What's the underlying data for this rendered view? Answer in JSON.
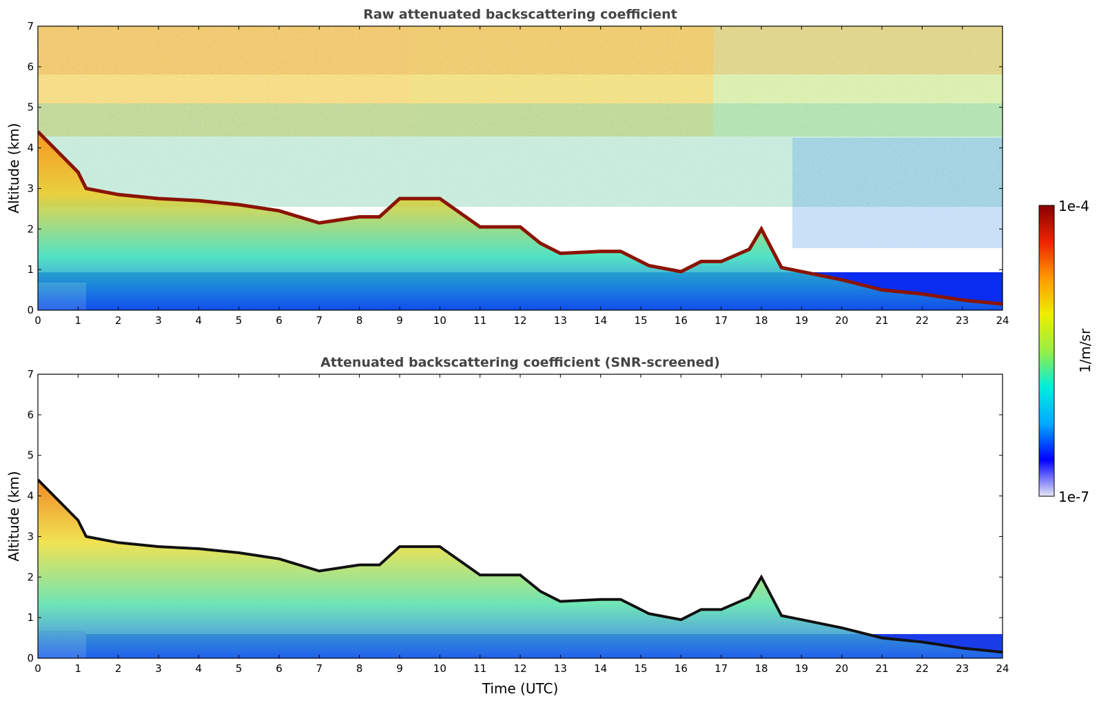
{
  "chart_data": [
    {
      "type": "heatmap",
      "title": "Raw attenuated backscattering coefficient",
      "xlabel": "",
      "ylabel": "Altitude (km)",
      "xlim": [
        0,
        24
      ],
      "ylim": [
        0,
        7
      ],
      "xticks": [
        "0",
        "1",
        "2",
        "3",
        "4",
        "5",
        "6",
        "7",
        "8",
        "9",
        "10",
        "11",
        "12",
        "13",
        "14",
        "15",
        "16",
        "17",
        "18",
        "19",
        "20",
        "21",
        "22",
        "23",
        "24"
      ],
      "yticks": [
        "0",
        "1",
        "2",
        "3",
        "4",
        "5",
        "6",
        "7"
      ],
      "cloud_base_km": [
        {
          "x": 0.0,
          "y": 4.4
        },
        {
          "x": 1.0,
          "y": 3.4
        },
        {
          "x": 1.2,
          "y": 3.0
        },
        {
          "x": 2.0,
          "y": 2.85
        },
        {
          "x": 3.0,
          "y": 2.75
        },
        {
          "x": 4.0,
          "y": 2.7
        },
        {
          "x": 5.0,
          "y": 2.6
        },
        {
          "x": 6.0,
          "y": 2.45
        },
        {
          "x": 7.0,
          "y": 2.15
        },
        {
          "x": 8.0,
          "y": 2.3
        },
        {
          "x": 8.5,
          "y": 2.3
        },
        {
          "x": 9.0,
          "y": 2.75
        },
        {
          "x": 10.0,
          "y": 2.75
        },
        {
          "x": 11.0,
          "y": 2.05
        },
        {
          "x": 12.0,
          "y": 2.05
        },
        {
          "x": 12.5,
          "y": 1.65
        },
        {
          "x": 13.0,
          "y": 1.4
        },
        {
          "x": 14.0,
          "y": 1.45
        },
        {
          "x": 14.5,
          "y": 1.45
        },
        {
          "x": 15.2,
          "y": 1.1
        },
        {
          "x": 16.0,
          "y": 0.95
        },
        {
          "x": 16.5,
          "y": 1.2
        },
        {
          "x": 17.0,
          "y": 1.2
        },
        {
          "x": 17.7,
          "y": 1.5
        },
        {
          "x": 18.0,
          "y": 2.0
        },
        {
          "x": 18.5,
          "y": 1.05
        },
        {
          "x": 19.0,
          "y": 0.95
        },
        {
          "x": 20.0,
          "y": 0.75
        },
        {
          "x": 21.0,
          "y": 0.5
        },
        {
          "x": 22.0,
          "y": 0.4
        },
        {
          "x": 23.0,
          "y": 0.25
        },
        {
          "x": 24.0,
          "y": 0.15
        }
      ],
      "grid": false
    },
    {
      "type": "heatmap",
      "title": "Attenuated backscattering coefficient (SNR-screened)",
      "xlabel": "Time (UTC)",
      "ylabel": "Altitude (km)",
      "xlim": [
        0,
        24
      ],
      "ylim": [
        0,
        7
      ],
      "xticks": [
        "0",
        "1",
        "2",
        "3",
        "4",
        "5",
        "6",
        "7",
        "8",
        "9",
        "10",
        "11",
        "12",
        "13",
        "14",
        "15",
        "16",
        "17",
        "18",
        "19",
        "20",
        "21",
        "22",
        "23",
        "24"
      ],
      "yticks": [
        "0",
        "1",
        "2",
        "3",
        "4",
        "5",
        "6",
        "7"
      ],
      "grid": false
    }
  ],
  "colorbar": {
    "label": "1/m/sr",
    "max_label": "1e-4",
    "min_label": "1e-7",
    "colors": [
      "#e6e6f5",
      "#0000ff",
      "#00aaff",
      "#00eedd",
      "#99ee44",
      "#eeee00",
      "#ff9900",
      "#ee2200",
      "#880000"
    ]
  }
}
